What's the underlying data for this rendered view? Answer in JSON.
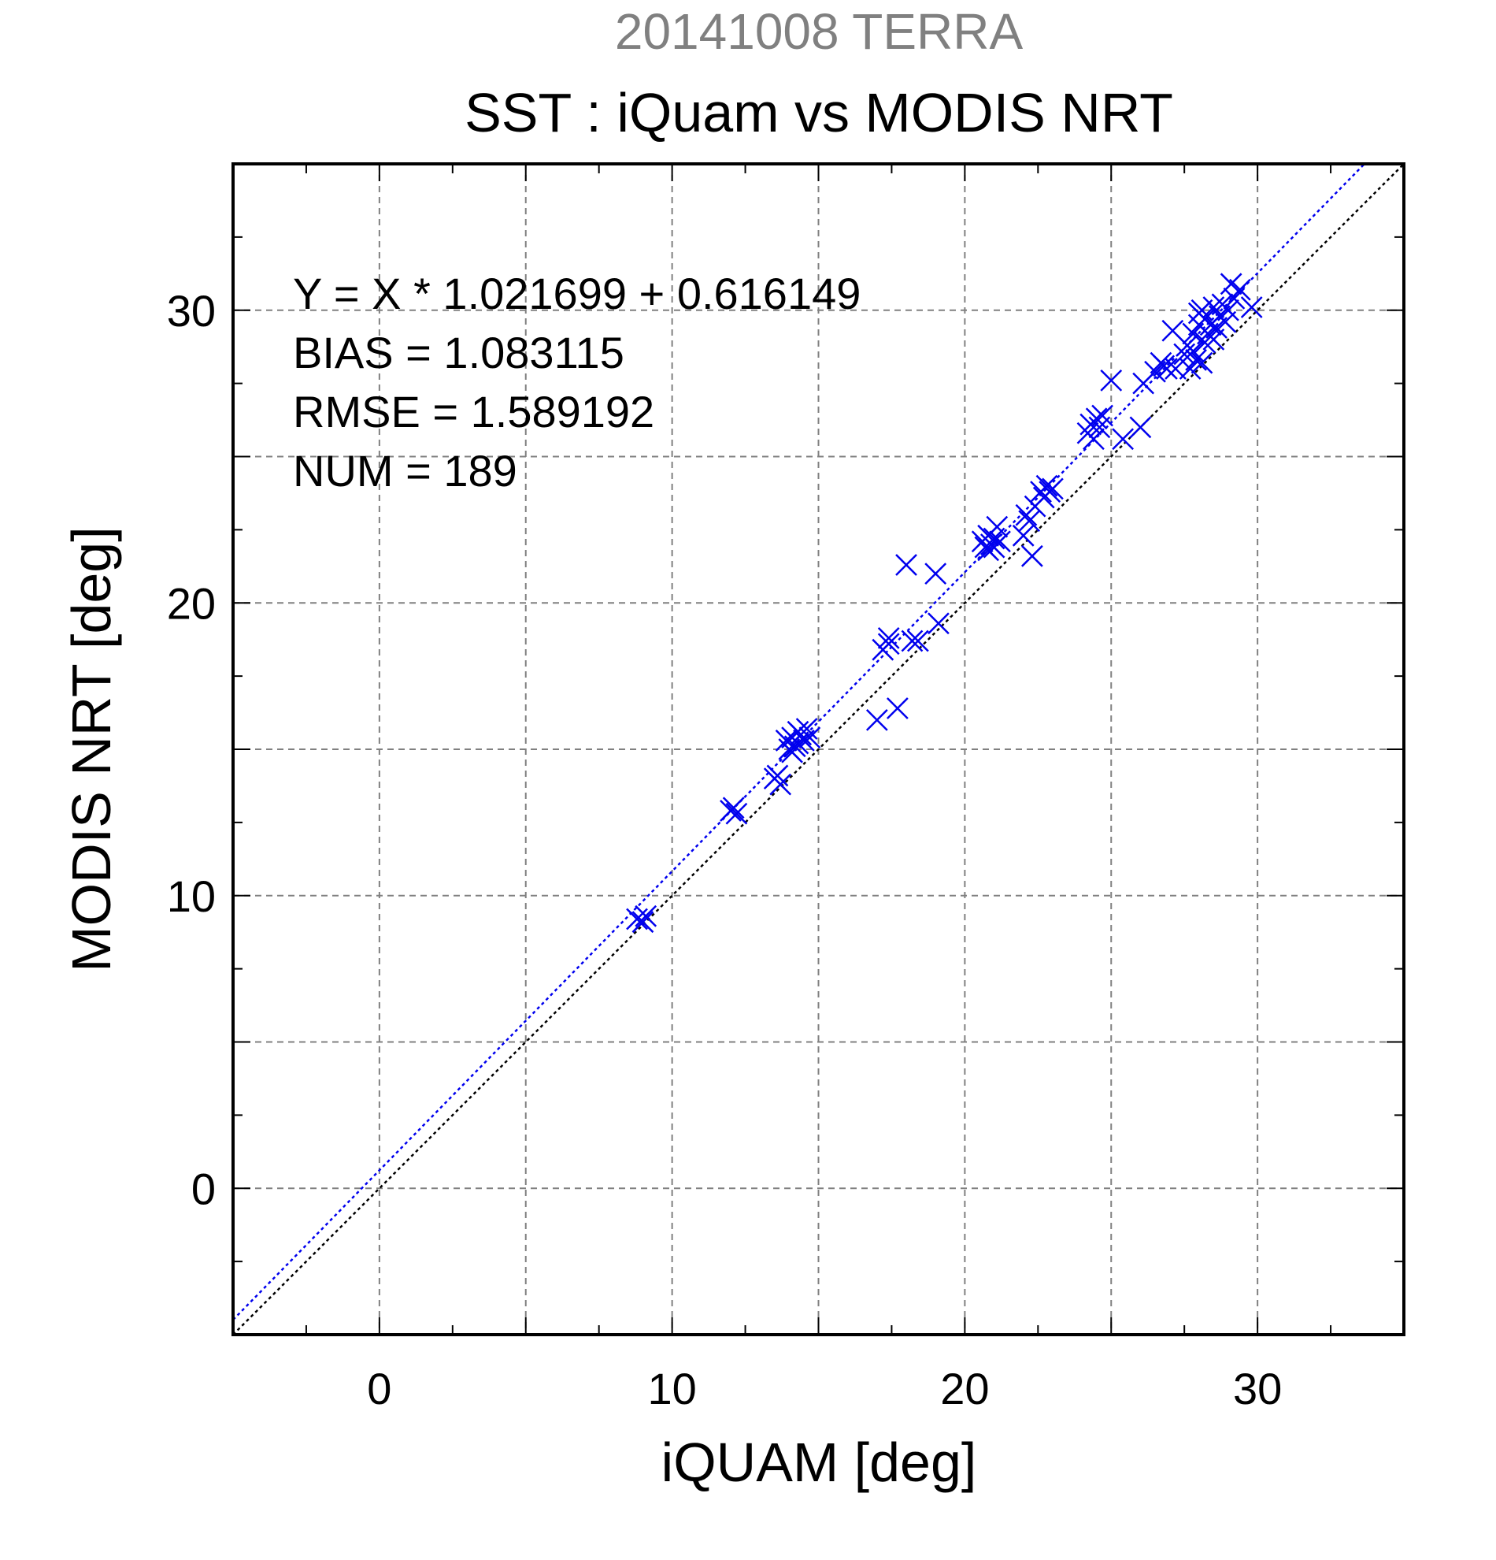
{
  "chart_data": {
    "type": "scatter",
    "title": "20141008 TERRA",
    "subtitle": "SST : iQuam vs MODIS NRT",
    "xlabel": "iQUAM [deg]",
    "ylabel": "MODIS NRT [deg]",
    "xlim": [
      -5,
      35
    ],
    "ylim": [
      -5,
      35
    ],
    "xticks": [
      0,
      10,
      20,
      30
    ],
    "yticks": [
      0,
      10,
      20,
      30
    ],
    "xtick_labels": [
      "0",
      "10",
      "20",
      "30"
    ],
    "ytick_labels": [
      "0",
      "10",
      "20",
      "30"
    ],
    "grid_step": 5,
    "grid": true,
    "stats": [
      "Y = X * 1.021699 + 0.616149",
      "BIAS = 1.083115",
      "RMSE = 1.589192",
      "NUM = 189"
    ],
    "fit": {
      "slope": 1.021699,
      "intercept": 0.616149
    },
    "colors": {
      "points": "#0000ee",
      "fit_line": "#0000ee",
      "identity_line": "#000000",
      "title": "#808080",
      "grid": "#808080"
    },
    "marker": "x",
    "series": [
      {
        "x": [
          8.8,
          9.0,
          9.1,
          12.0,
          12.1,
          12.2,
          13.5,
          13.6,
          13.7,
          13.9,
          14.0,
          14.1,
          14.1,
          14.2,
          14.3,
          14.3,
          14.4,
          14.5,
          14.6,
          14.7,
          17.0,
          17.2,
          17.4,
          17.4,
          17.7,
          18.0,
          18.2,
          18.4,
          19.0,
          19.1,
          20.6,
          20.7,
          20.8,
          20.8,
          20.9,
          21.0,
          21.0,
          21.1,
          21.2,
          22.0,
          22.1,
          22.2,
          22.3,
          22.4,
          22.6,
          22.7,
          22.8,
          22.9,
          23.0,
          24.2,
          24.3,
          24.4,
          24.5,
          24.6,
          24.7,
          25.0,
          25.4,
          26.0,
          26.1,
          26.5,
          26.7,
          26.8,
          26.9,
          27.1,
          27.2,
          27.5,
          27.6,
          27.7,
          27.8,
          27.8,
          27.9,
          28.0,
          28.0,
          28.1,
          28.1,
          28.2,
          28.2,
          28.3,
          28.4,
          28.5,
          28.5,
          28.6,
          28.7,
          28.8,
          28.9,
          29.0,
          29.1,
          29.2,
          29.4,
          29.8
        ],
        "y": [
          9.2,
          9.1,
          9.3,
          12.9,
          13.0,
          12.8,
          14.0,
          14.1,
          13.8,
          15.3,
          15.0,
          14.9,
          15.4,
          15.1,
          15.6,
          15.2,
          15.5,
          15.3,
          15.7,
          15.4,
          16.0,
          18.4,
          18.6,
          18.8,
          16.4,
          21.3,
          18.7,
          18.7,
          21.0,
          19.3,
          22.1,
          21.9,
          22.3,
          21.8,
          22.0,
          22.2,
          21.9,
          22.6,
          22.1,
          22.3,
          23.0,
          22.8,
          21.6,
          23.3,
          23.8,
          23.6,
          24.0,
          23.8,
          23.9,
          25.8,
          26.1,
          25.6,
          26.3,
          26.0,
          26.4,
          27.6,
          25.6,
          26.0,
          27.5,
          27.9,
          28.2,
          28.1,
          28.0,
          29.3,
          28.0,
          28.5,
          28.8,
          28.0,
          29.2,
          28.6,
          28.3,
          29.9,
          29.5,
          28.2,
          30.0,
          28.9,
          29.7,
          29.2,
          29.5,
          30.1,
          29.0,
          29.4,
          29.8,
          30.2,
          29.6,
          30.0,
          30.9,
          30.4,
          30.7,
          30.1
        ],
        "colors": []
      }
    ]
  }
}
